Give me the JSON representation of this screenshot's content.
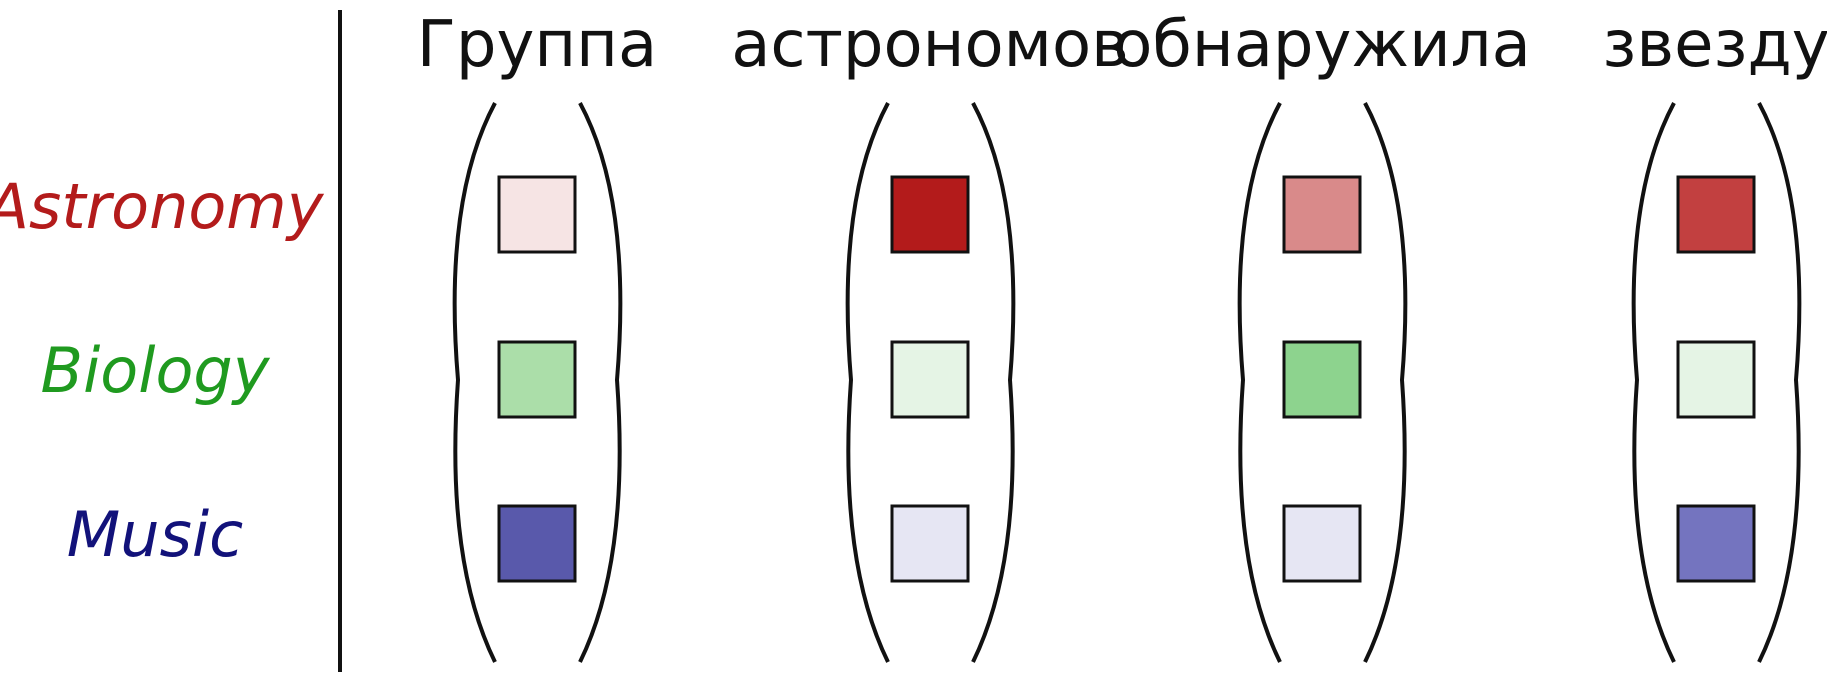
{
  "words": [
    "Группа",
    "астрономов",
    "обнаружила",
    "звезду"
  ],
  "topics": [
    {
      "label": "Astronomy",
      "color": "#b31b1b"
    },
    {
      "label": "Biology",
      "color": "#1f9a1f"
    },
    {
      "label": "Music",
      "color": "#12127a"
    }
  ],
  "cells": [
    [
      "#f6e4e4",
      "#b31b1b",
      "#d98a8a",
      "#c24040"
    ],
    [
      "#abdea9",
      "#e5f4e5",
      "#8dd38e",
      "#e5f4e5"
    ],
    [
      "#5959ab",
      "#e6e6f3",
      "#e6e6f3",
      "#7474bf"
    ]
  ],
  "colors": {
    "text": "#111111",
    "divider": "#111111",
    "bracket": "#111111"
  }
}
